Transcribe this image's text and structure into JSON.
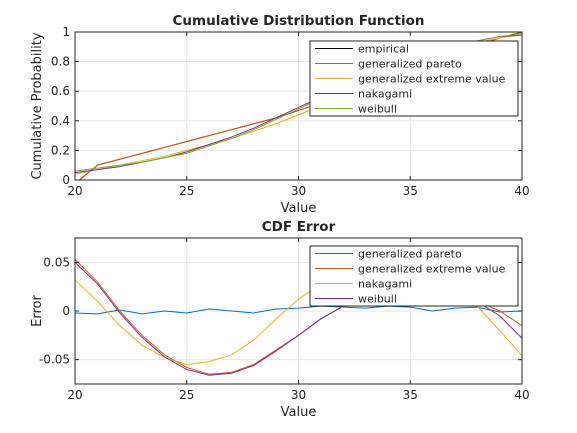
{
  "chart_data": [
    {
      "type": "line",
      "title": "Cumulative Distribution Function",
      "xlabel": "Value",
      "ylabel": "Cumulative Probability",
      "xlim": [
        20,
        40
      ],
      "ylim": [
        0,
        1
      ],
      "xticks": [
        20,
        25,
        30,
        35,
        40
      ],
      "xtick_labels": [
        "20",
        "25",
        "30",
        "35",
        "40"
      ],
      "yticks": [
        0,
        0.2,
        0.4,
        0.6,
        0.8,
        1
      ],
      "ytick_labels": [
        "0",
        "0.2",
        "0.4",
        "0.6",
        "0.8",
        "1"
      ],
      "grid": true,
      "legend_position": "top-right",
      "series": [
        {
          "name": "empirical",
          "color": "#000000",
          "x": [
            20.2,
            21,
            22,
            23,
            24,
            25,
            26,
            27,
            28,
            29,
            30,
            31,
            32,
            33,
            34,
            35,
            36,
            37,
            38,
            39,
            40
          ],
          "y": [
            0.0,
            0.1,
            0.14,
            0.18,
            0.22,
            0.26,
            0.3,
            0.34,
            0.38,
            0.42,
            0.47,
            0.52,
            0.58,
            0.64,
            0.7,
            0.76,
            0.81,
            0.86,
            0.91,
            0.96,
            1.0
          ]
        },
        {
          "name": "generalized pareto",
          "color": "#D95319",
          "x": [
            20.2,
            21,
            22,
            23,
            24,
            25,
            26,
            27,
            28,
            29,
            30,
            31,
            32,
            33,
            34,
            35,
            36,
            37,
            38,
            39,
            40
          ],
          "y": [
            0.0,
            0.1,
            0.14,
            0.18,
            0.22,
            0.26,
            0.3,
            0.34,
            0.38,
            0.42,
            0.47,
            0.52,
            0.58,
            0.64,
            0.7,
            0.76,
            0.81,
            0.86,
            0.91,
            0.96,
            1.0
          ]
        },
        {
          "name": "generalized extreme value",
          "color": "#EDB120",
          "x": [
            20,
            21,
            22,
            23,
            24,
            25,
            26,
            27,
            28,
            29,
            30,
            31,
            32,
            33,
            34,
            35,
            36,
            37,
            38,
            39,
            40
          ],
          "y": [
            0.04,
            0.07,
            0.1,
            0.13,
            0.16,
            0.2,
            0.24,
            0.28,
            0.33,
            0.38,
            0.44,
            0.5,
            0.57,
            0.64,
            0.71,
            0.78,
            0.84,
            0.89,
            0.93,
            0.96,
            0.98
          ]
        },
        {
          "name": "nakagami",
          "color": "#7E2F8E",
          "x": [
            20,
            21,
            22,
            23,
            24,
            25,
            26,
            27,
            28,
            29,
            30,
            31,
            32,
            33,
            34,
            35,
            36,
            37,
            38,
            39,
            40
          ],
          "y": [
            0.05,
            0.07,
            0.09,
            0.12,
            0.15,
            0.19,
            0.24,
            0.29,
            0.35,
            0.42,
            0.49,
            0.56,
            0.63,
            0.7,
            0.76,
            0.82,
            0.87,
            0.91,
            0.94,
            0.97,
            0.98
          ]
        },
        {
          "name": "weibull",
          "color": "#77AC30",
          "x": [
            20,
            21,
            22,
            23,
            24,
            25,
            26,
            27,
            28,
            29,
            30,
            31,
            32,
            33,
            34,
            35,
            36,
            37,
            38,
            39,
            40
          ],
          "y": [
            0.06,
            0.08,
            0.1,
            0.12,
            0.15,
            0.18,
            0.23,
            0.28,
            0.34,
            0.41,
            0.48,
            0.55,
            0.62,
            0.69,
            0.75,
            0.81,
            0.86,
            0.9,
            0.94,
            0.97,
            0.99
          ]
        }
      ]
    },
    {
      "type": "line",
      "title": "CDF Error",
      "xlabel": "Value",
      "ylabel": "Error",
      "xlim": [
        20,
        40
      ],
      "ylim": [
        -0.075,
        0.075
      ],
      "xticks": [
        20,
        25,
        30,
        35,
        40
      ],
      "xtick_labels": [
        "20",
        "25",
        "30",
        "35",
        "40"
      ],
      "yticks": [
        -0.05,
        0,
        0.05
      ],
      "ytick_labels": [
        "-0.05",
        "0",
        "0.05"
      ],
      "grid": true,
      "legend_position": "top-right",
      "series": [
        {
          "name": "generalized pareto",
          "color": "#0072BD",
          "x": [
            20,
            21,
            22,
            23,
            24,
            25,
            26,
            27,
            28,
            29,
            30,
            31,
            32,
            33,
            34,
            35,
            36,
            37,
            38,
            39,
            40
          ],
          "y": [
            -0.002,
            -0.003,
            0.001,
            -0.003,
            0.0,
            -0.002,
            0.002,
            0.0,
            -0.002,
            0.002,
            0.003,
            0.005,
            0.004,
            0.003,
            0.005,
            0.004,
            0.0,
            0.003,
            0.004,
            -0.001,
            0.0
          ]
        },
        {
          "name": "generalized extreme value",
          "color": "#D95319",
          "x": [
            20,
            21,
            22,
            23,
            24,
            25,
            26,
            27,
            28,
            29,
            30,
            31,
            32,
            33,
            34,
            35,
            36,
            37,
            38,
            39,
            40
          ],
          "y": [
            0.053,
            0.03,
            0.0,
            -0.025,
            -0.045,
            -0.058,
            -0.065,
            -0.063,
            -0.055,
            -0.04,
            -0.025,
            -0.008,
            0.005,
            0.02,
            0.03,
            0.033,
            0.03,
            0.022,
            0.01,
            0.0,
            -0.015
          ]
        },
        {
          "name": "nakagami",
          "color": "#EDB120",
          "x": [
            20,
            21,
            22,
            23,
            24,
            25,
            26,
            27,
            28,
            29,
            30,
            31,
            32,
            33,
            34,
            35,
            36,
            37,
            38,
            39,
            40
          ],
          "y": [
            0.032,
            0.01,
            -0.015,
            -0.035,
            -0.048,
            -0.055,
            -0.052,
            -0.045,
            -0.03,
            -0.008,
            0.012,
            0.028,
            0.038,
            0.043,
            0.045,
            0.042,
            0.035,
            0.022,
            0.005,
            -0.02,
            -0.046
          ]
        },
        {
          "name": "weibull",
          "color": "#7E2F8E",
          "x": [
            20,
            21,
            22,
            23,
            24,
            25,
            26,
            27,
            28,
            29,
            30,
            31,
            32,
            33,
            34,
            35,
            36,
            37,
            38,
            39,
            40
          ],
          "y": [
            0.05,
            0.028,
            -0.002,
            -0.027,
            -0.047,
            -0.06,
            -0.066,
            -0.064,
            -0.056,
            -0.041,
            -0.025,
            -0.008,
            0.005,
            0.02,
            0.03,
            0.033,
            0.03,
            0.022,
            0.01,
            -0.005,
            -0.028
          ]
        }
      ]
    }
  ]
}
